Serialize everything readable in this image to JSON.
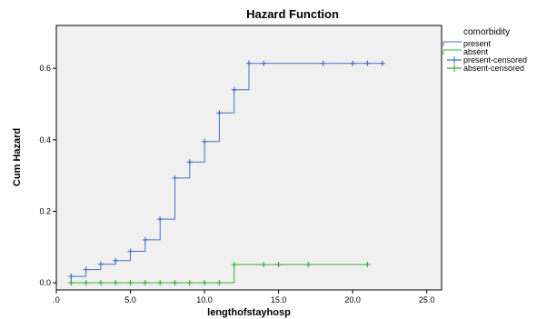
{
  "chart_data": {
    "type": "line",
    "title": "Hazard Function",
    "xlabel": "lengthofstayhosp",
    "ylabel": "Cum Hazard",
    "xlim": [
      0,
      26
    ],
    "ylim": [
      -0.02,
      0.72
    ],
    "x_ticks": [
      0,
      5,
      10,
      15,
      20,
      25
    ],
    "x_tick_labels": [
      ".0",
      "5.0",
      "10.0",
      "15.0",
      "20.0",
      "25.0"
    ],
    "y_ticks": [
      0,
      0.2,
      0.4,
      0.6
    ],
    "y_tick_labels": [
      "0.0",
      "0.2",
      "0.4",
      "0.6"
    ],
    "grid": false,
    "legend_position": "top-right",
    "legend_title": "comorbidity",
    "series": [
      {
        "name": "present",
        "color": "#4a6fc0",
        "step": true,
        "points": [
          [
            1,
            0.0
          ],
          [
            1,
            0.018
          ],
          [
            2,
            0.018
          ],
          [
            2,
            0.037
          ],
          [
            3,
            0.037
          ],
          [
            3,
            0.052
          ],
          [
            4,
            0.052
          ],
          [
            4,
            0.062
          ],
          [
            5,
            0.062
          ],
          [
            5,
            0.088
          ],
          [
            6,
            0.088
          ],
          [
            6,
            0.12
          ],
          [
            7,
            0.12
          ],
          [
            7,
            0.178
          ],
          [
            8,
            0.178
          ],
          [
            8,
            0.293
          ],
          [
            9,
            0.293
          ],
          [
            9,
            0.338
          ],
          [
            10,
            0.338
          ],
          [
            10,
            0.395
          ],
          [
            11,
            0.395
          ],
          [
            11,
            0.475
          ],
          [
            12,
            0.475
          ],
          [
            12,
            0.54
          ],
          [
            13,
            0.54
          ],
          [
            13,
            0.614
          ],
          [
            22,
            0.614
          ]
        ]
      },
      {
        "name": "absent",
        "color": "#3dac3d",
        "step": true,
        "points": [
          [
            1,
            0.0
          ],
          [
            12,
            0.0
          ],
          [
            12,
            0.051
          ],
          [
            21,
            0.051
          ]
        ]
      }
    ],
    "censored": [
      {
        "name": "present-censored",
        "color": "#4a6fc0",
        "points": [
          [
            1,
            0.018
          ],
          [
            2,
            0.037
          ],
          [
            3,
            0.052
          ],
          [
            4,
            0.062
          ],
          [
            5,
            0.088
          ],
          [
            6,
            0.12
          ],
          [
            7,
            0.178
          ],
          [
            8,
            0.293
          ],
          [
            9,
            0.338
          ],
          [
            10,
            0.395
          ],
          [
            11,
            0.475
          ],
          [
            12,
            0.54
          ],
          [
            13,
            0.614
          ],
          [
            14,
            0.614
          ],
          [
            18,
            0.614
          ],
          [
            20,
            0.614
          ],
          [
            21,
            0.614
          ],
          [
            22,
            0.614
          ]
        ]
      },
      {
        "name": "absent-censored",
        "color": "#3dac3d",
        "points": [
          [
            1,
            0.0
          ],
          [
            2,
            0.0
          ],
          [
            3,
            0.0
          ],
          [
            4,
            0.0
          ],
          [
            5,
            0.0
          ],
          [
            6,
            0.0
          ],
          [
            7,
            0.0
          ],
          [
            8,
            0.0
          ],
          [
            9,
            0.0
          ],
          [
            10,
            0.0
          ],
          [
            11,
            0.0
          ],
          [
            12,
            0.051
          ],
          [
            14,
            0.051
          ],
          [
            15,
            0.051
          ],
          [
            17,
            0.051
          ],
          [
            21,
            0.051
          ]
        ]
      }
    ]
  }
}
